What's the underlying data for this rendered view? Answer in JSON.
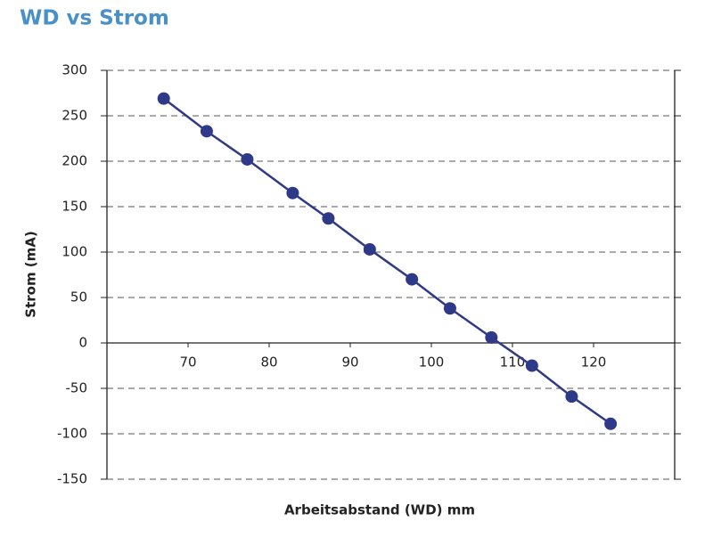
{
  "chart_data": {
    "type": "line",
    "title": "WD vs Strom",
    "x_label": "Arbeitsabstand (WD) mm",
    "y_label": "Strom (mA)",
    "x": [
      67,
      72.3,
      77.3,
      82.9,
      87.3,
      92.4,
      97.6,
      102.3,
      107.4,
      112.4,
      117.3,
      122.1
    ],
    "values": [
      269,
      233,
      202,
      165,
      137,
      103,
      70,
      38,
      6,
      -25,
      -59,
      -89
    ],
    "color": "#2e3a87",
    "xlim": [
      60,
      130
    ],
    "xticks": [
      70,
      80,
      90,
      100,
      110,
      120
    ],
    "ylim": [
      -150,
      300
    ],
    "yticks": [
      -150,
      -100,
      -50,
      0,
      50,
      100,
      150,
      200,
      250,
      300
    ],
    "grid": true
  }
}
